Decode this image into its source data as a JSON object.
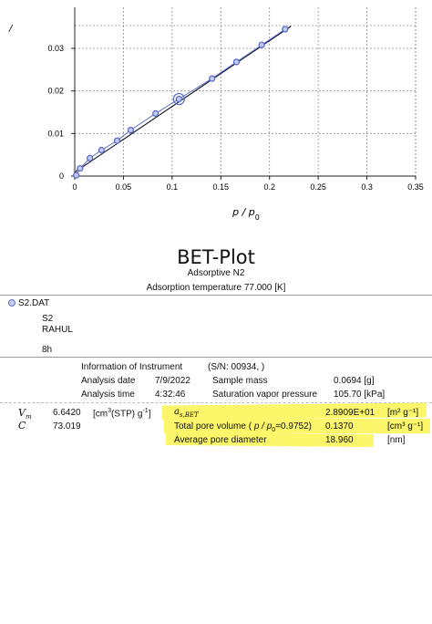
{
  "chart_data": {
    "type": "scatter",
    "title": "",
    "xlabel": "p / p0",
    "ylabel": "",
    "xlim": [
      0,
      0.35
    ],
    "ylim": [
      0,
      0.035
    ],
    "grid": true,
    "x_ticks": [
      "0",
      "0.05",
      "0.1",
      "0.15",
      "0.2",
      "0.25",
      "0.3",
      "0.35"
    ],
    "y_ticks": [
      "0",
      "0.01",
      "0.02",
      "0.03"
    ],
    "ylabel_visible_fragment": "/",
    "points": [
      {
        "x": 0.0015,
        "y": 0.0002
      },
      {
        "x": 0.0055,
        "y": 0.0018
      },
      {
        "x": 0.0155,
        "y": 0.0042
      },
      {
        "x": 0.0275,
        "y": 0.0061
      },
      {
        "x": 0.0435,
        "y": 0.0083
      },
      {
        "x": 0.0575,
        "y": 0.0108
      },
      {
        "x": 0.083,
        "y": 0.0147
      },
      {
        "x": 0.107,
        "y": 0.0181
      },
      {
        "x": 0.141,
        "y": 0.0229
      },
      {
        "x": 0.166,
        "y": 0.0268
      },
      {
        "x": 0.192,
        "y": 0.0308
      },
      {
        "x": 0.216,
        "y": 0.0345
      }
    ],
    "selected_point_index": 7,
    "fit_line": {
      "x": [
        0.0,
        0.222
      ],
      "y": [
        0.0009,
        0.0352
      ]
    },
    "colors": {
      "points": "#5b6cc9",
      "fill": "#c4cbf2",
      "fit": "#111122",
      "grid": "#8a8a8a"
    }
  },
  "report": {
    "title": "BET-Plot",
    "adsorptive": "Adsorptive N2",
    "adsorption_temperature": "Adsorption temperature 77.000 [K]",
    "file": {
      "name": "S2.DAT",
      "sample": "S2",
      "operator": "RAHUL",
      "note": "8h"
    },
    "instrument": {
      "label": "Information of Instrument",
      "serial": "(S/N: 00934, )",
      "analysis_date_label": "Analysis date",
      "analysis_date": "7/9/2022",
      "analysis_time_label": "Analysis time",
      "analysis_time": "4:32:46",
      "sample_mass_label": "Sample mass",
      "sample_mass": "0.0694 [g]",
      "svp_label": "Saturation vapor pressure",
      "svp": "105.70 [kPa]"
    },
    "vm": {
      "value": "6.6420",
      "unit_pre": "[cm",
      "unit_sup": "3",
      "unit_mid": "(STP) g",
      "unit_sup2": "-1",
      "unit_post": "]"
    },
    "c": {
      "value": "73.019"
    },
    "as_bet": {
      "value": "2.8909E+01",
      "unit": "[m² g⁻¹]"
    },
    "total_pore_volume": {
      "label_pre": "Total pore volume (",
      "label_ratio": " p / p",
      "label_post": "=0.9752)",
      "value": "0.1370",
      "unit": "[cm³ g⁻¹]"
    },
    "avg_pore_diameter": {
      "label": "Average pore diameter",
      "value": "18.960",
      "unit": "[nm]"
    },
    "highlight_color": "#fbf66a"
  }
}
